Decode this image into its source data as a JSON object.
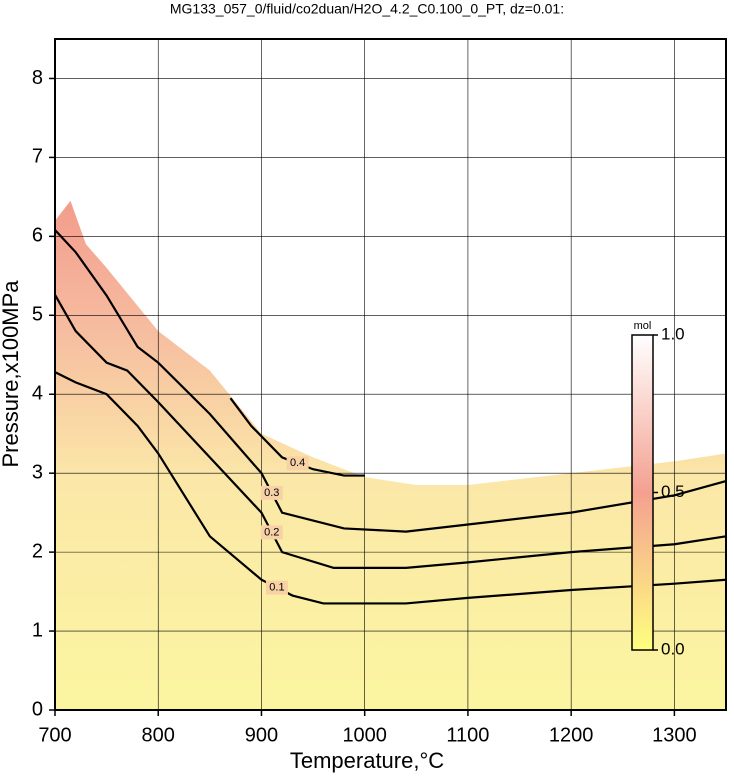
{
  "chart_data": {
    "type": "contour",
    "title": "MG133_057_0/fluid/co2duan/H2O_4.2_C0.100_0_PT, dz=0.01:",
    "x_label": "Temperature,°C",
    "y_label": "Pressure,x100MPa",
    "xlim": [
      700,
      1350
    ],
    "ylim": [
      0,
      8.5
    ],
    "xticks": [
      700,
      800,
      900,
      1000,
      1100,
      1200,
      1300
    ],
    "yticks": [
      0,
      1,
      2,
      3,
      4,
      5,
      6,
      7,
      8
    ],
    "grid": true,
    "boundary": {
      "x": [
        700,
        715,
        730,
        750,
        800,
        850,
        900,
        950,
        1000,
        1050,
        1100,
        1200,
        1300,
        1350
      ],
      "values": [
        6.2,
        6.45,
        5.9,
        5.6,
        4.8,
        4.3,
        3.5,
        3.2,
        2.95,
        2.85,
        2.85,
        3.0,
        3.15,
        3.25
      ]
    },
    "series": [
      {
        "name": "0.1",
        "color": "#000000",
        "x": [
          700,
          720,
          750,
          780,
          800,
          850,
          900,
          930,
          960,
          1040,
          1100,
          1200,
          1300,
          1350
        ],
        "values": [
          4.28,
          4.15,
          4.0,
          3.6,
          3.25,
          2.2,
          1.65,
          1.45,
          1.35,
          1.35,
          1.42,
          1.52,
          1.6,
          1.65
        ]
      },
      {
        "name": "0.2",
        "color": "#000000",
        "x": [
          700,
          720,
          750,
          770,
          800,
          850,
          900,
          920,
          970,
          1040,
          1100,
          1200,
          1300,
          1350
        ],
        "values": [
          5.26,
          4.8,
          4.4,
          4.3,
          3.9,
          3.2,
          2.5,
          2.0,
          1.8,
          1.8,
          1.87,
          2.0,
          2.1,
          2.2
        ]
      },
      {
        "name": "0.3",
        "color": "#000000",
        "x": [
          700,
          720,
          750,
          780,
          800,
          850,
          900,
          920,
          980,
          1040,
          1100,
          1200,
          1300,
          1350
        ],
        "values": [
          6.08,
          5.8,
          5.25,
          4.6,
          4.4,
          3.75,
          3.0,
          2.5,
          2.3,
          2.26,
          2.35,
          2.5,
          2.72,
          2.9
        ]
      },
      {
        "name": "0.4",
        "color": "#000000",
        "x": [
          870,
          890,
          920,
          950,
          980,
          1000
        ],
        "values": [
          3.95,
          3.6,
          3.2,
          3.05,
          2.97,
          2.97
        ]
      }
    ],
    "colorbar": {
      "label": "mol",
      "clim": [
        0,
        1
      ],
      "ticks": [
        {
          "value": 0,
          "label": "0.0"
        },
        {
          "value": 0.5,
          "label": "0.5"
        },
        {
          "value": 1,
          "label": "1.0"
        }
      ],
      "colors": [
        "#ffff80",
        "#f4a090",
        "#ffffff"
      ]
    }
  }
}
